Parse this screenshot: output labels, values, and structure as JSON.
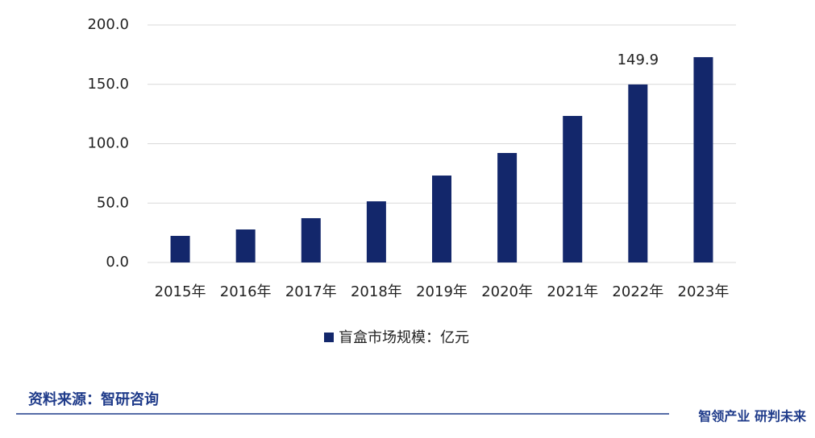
{
  "chart_data": {
    "type": "bar",
    "categories": [
      "2015年",
      "2016年",
      "2017年",
      "2018年",
      "2019年",
      "2020年",
      "2021年",
      "2022年",
      "2023年"
    ],
    "series": [
      {
        "name": "盲盒市场规模：亿元",
        "color": "#13276b",
        "values": [
          22.4,
          27.8,
          37.3,
          51.5,
          73.2,
          92.2,
          123.4,
          149.9,
          172.9
        ],
        "value_labels": [
          null,
          null,
          null,
          null,
          null,
          null,
          null,
          "149.9",
          null
        ]
      }
    ],
    "ylim": [
      0,
      200
    ],
    "yticks": [
      {
        "value": 0,
        "label": "0.0"
      },
      {
        "value": 50,
        "label": "50.0"
      },
      {
        "value": 100,
        "label": "100.0"
      },
      {
        "value": 150,
        "label": "150.0"
      },
      {
        "value": 200,
        "label": "200.0"
      }
    ],
    "grid": true,
    "legend": "bottom",
    "source": "资料来源：智研咨询",
    "slogan": "智领产业 研判未来"
  }
}
